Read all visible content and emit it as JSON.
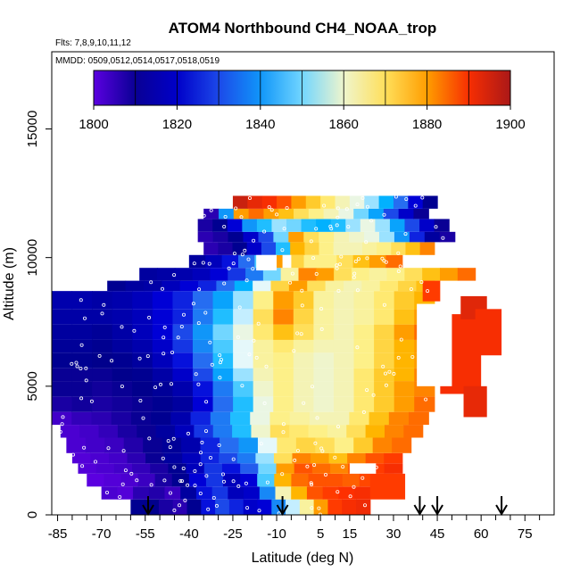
{
  "chart_data": {
    "type": "heatmap",
    "title": "ATOM4 Northbound CH4_NOAA_trop",
    "flights_note": "Flts: 7,8,9,10,11,12",
    "dates_note": "MMDD: 0509,0512,0514,0517,0518,0519",
    "xlabel": "Latitude (deg N)",
    "ylabel": "Altitude (m)",
    "xlim": [
      -87,
      85
    ],
    "ylim": [
      0,
      18000
    ],
    "x_ticks": [
      -85,
      -70,
      -55,
      -40,
      -25,
      -10,
      5,
      15,
      30,
      45,
      60,
      75
    ],
    "x_minor_ticks": [
      -80,
      -75,
      -65,
      -60,
      -50,
      -45,
      -35,
      -30,
      -20,
      -15,
      -5,
      0,
      10,
      20,
      25,
      35,
      40,
      50,
      55,
      65,
      70,
      80
    ],
    "y_ticks": [
      0,
      5000,
      10000,
      15000
    ],
    "colorbar": {
      "min": 1800,
      "max": 1900,
      "ticks": [
        1800,
        1820,
        1840,
        1860,
        1880,
        1900
      ],
      "segments": 10,
      "colors": [
        "#5b00e0",
        "#00008b",
        "#0000d8",
        "#2868f0",
        "#00b4ff",
        "#e4f8ff",
        "#fff080",
        "#ffb800",
        "#ff3000",
        "#aa1818"
      ]
    },
    "arrow_latitudes": [
      -54,
      -8,
      39,
      45,
      67
    ],
    "layers": [
      {
        "ymin": 0,
        "ymax": 600,
        "x0": -60,
        "x1": 22,
        "values": [
          1812,
          1811,
          1808,
          1806,
          1812,
          1824,
          1830,
          1826,
          1820,
          1822,
          1838,
          1854,
          1864,
          1880,
          1888,
          1890,
          1891
        ]
      },
      {
        "ymin": 600,
        "ymax": 1100,
        "x0": -70,
        "x1": 22,
        "values": [
          1802,
          1801,
          1806,
          1807,
          1804,
          1814,
          1824,
          1828,
          1818,
          1820,
          1838,
          1862,
          1878,
          1886,
          1888,
          1889,
          1890
        ]
      },
      {
        "ymin": 1100,
        "ymax": 1600,
        "x0": -75,
        "x1": 30,
        "values": [
          1800,
          1801,
          1802,
          1804,
          1808,
          1812,
          1822,
          1828,
          1818,
          1822,
          1848,
          1878,
          1884,
          1886,
          1886,
          1885,
          1887,
          1888
        ]
      },
      {
        "ymin": 1600,
        "ymax": 2000,
        "x0": -78,
        "x1": 33,
        "values": [
          1801,
          1802,
          1803,
          1805,
          1808,
          1812,
          1818,
          1828,
          1824,
          1832,
          1850,
          1880,
          1886,
          1884,
          1882,
          1886,
          1888,
          1890
        ]
      },
      {
        "ymin": 2000,
        "ymax": 2400,
        "x0": -80,
        "x1": 33,
        "values": [
          1801,
          1802,
          1803,
          1806,
          1810,
          1814,
          1818,
          1826,
          1830,
          1836,
          1852,
          1870,
          1882,
          1880,
          1876,
          1882,
          1886,
          1888
        ]
      },
      {
        "ymin": 2400,
        "ymax": 3000,
        "x0": -82,
        "x1": 36,
        "values": [
          1802,
          1803,
          1804,
          1807,
          1810,
          1813,
          1816,
          1826,
          1834,
          1840,
          1856,
          1868,
          1872,
          1870,
          1866,
          1874,
          1882,
          1884
        ]
      },
      {
        "ymin": 3000,
        "ymax": 3500,
        "x0": -84,
        "x1": 40,
        "values": [
          1802,
          1803,
          1805,
          1808,
          1810,
          1814,
          1818,
          1828,
          1836,
          1846,
          1860,
          1870,
          1868,
          1866,
          1864,
          1870,
          1878,
          1882,
          1884
        ]
      },
      {
        "ymin": 3500,
        "ymax": 4000,
        "x0": -87,
        "x1": 42,
        "values": [
          1803,
          1805,
          1806,
          1808,
          1810,
          1812,
          1816,
          1826,
          1836,
          1846,
          1858,
          1866,
          1864,
          1862,
          1862,
          1868,
          1876,
          1882,
          1884
        ]
      },
      {
        "ymin": 4000,
        "ymax": 4600,
        "x0": -87,
        "x1": 44,
        "values": [
          1808,
          1809,
          1808,
          1809,
          1810,
          1812,
          1814,
          1822,
          1834,
          1846,
          1858,
          1866,
          1862,
          1860,
          1862,
          1868,
          1874,
          1880,
          1884
        ]
      },
      {
        "ymin": 4600,
        "ymax": 5200,
        "x0": -87,
        "x1": 44,
        "values": [
          1810,
          1810,
          1809,
          1810,
          1811,
          1813,
          1816,
          1824,
          1836,
          1848,
          1860,
          1866,
          1862,
          1860,
          1862,
          1868,
          1874,
          1880,
          1882
        ]
      },
      {
        "ymin": 5200,
        "ymax": 5700,
        "x0": -87,
        "x1": 44,
        "values": [
          1810,
          1810,
          1810,
          1811,
          1812,
          1815,
          1820,
          1830,
          1842,
          1852,
          1862,
          1866,
          1862,
          1860,
          1862,
          1868,
          1874,
          1878,
          1882
        ]
      },
      {
        "ymin": 5700,
        "ymax": 6300,
        "x0": -87,
        "x1": 44,
        "values": [
          1812,
          1812,
          1811,
          1812,
          1814,
          1818,
          1824,
          1834,
          1846,
          1856,
          1864,
          1866,
          1862,
          1860,
          1862,
          1866,
          1872,
          1878,
          1880
        ]
      },
      {
        "ymin": 6300,
        "ymax": 6800,
        "x0": -87,
        "x1": 44,
        "values": [
          1813,
          1813,
          1812,
          1814,
          1816,
          1820,
          1828,
          1838,
          1848,
          1856,
          1864,
          1868,
          1864,
          1862,
          1862,
          1866,
          1872,
          1878,
          1880
        ]
      },
      {
        "ymin": 6800,
        "ymax": 7400,
        "x0": -87,
        "x1": 44,
        "values": [
          1814,
          1814,
          1813,
          1815,
          1818,
          1822,
          1830,
          1840,
          1850,
          1858,
          1868,
          1876,
          1870,
          1864,
          1862,
          1866,
          1872,
          1880,
          1884
        ]
      },
      {
        "ymin": 7400,
        "ymax": 8000,
        "x0": -87,
        "x1": 44,
        "values": [
          1815,
          1815,
          1815,
          1816,
          1818,
          1822,
          1826,
          1836,
          1846,
          1854,
          1870,
          1882,
          1872,
          1864,
          1862,
          1864,
          1868,
          1876,
          1880
        ]
      },
      {
        "ymin": 8000,
        "ymax": 8700,
        "x0": -87,
        "x1": 44,
        "values": [
          1816,
          1816,
          1815,
          1816,
          1818,
          1822,
          1826,
          1834,
          1842,
          1852,
          1866,
          1880,
          1874,
          1864,
          1862,
          1864,
          1868,
          1874,
          1878
        ]
      },
      {
        "ymin": 8700,
        "ymax": 9100,
        "x0": -68,
        "x1": 44,
        "values": [
          1812,
          1814,
          1815,
          1818,
          1822,
          1826,
          1834,
          1844,
          1856,
          1872,
          1880,
          1870,
          1864,
          1862,
          1864,
          1868,
          1872,
          1876
        ]
      },
      {
        "ymin": 9100,
        "ymax": 9600,
        "x0": -57,
        "x1": 58,
        "values": [
          1814,
          1815,
          1816,
          1818,
          1822,
          1828,
          1836,
          1850,
          1864,
          1882,
          1880,
          1870,
          1866,
          1864,
          1866,
          1870,
          1876,
          1880,
          1884
        ]
      },
      {
        "ymin": 9600,
        "ymax": 10100,
        "x0": -40,
        "x1": 33,
        "values": [
          1814,
          1818,
          1824,
          1834,
          1848,
          1880,
          1872,
          1866,
          1866,
          1870,
          1876,
          1880,
          1884
        ]
      },
      {
        "ymin": 10100,
        "ymax": 10600,
        "x0": -35,
        "x1": 44,
        "values": [
          1806,
          1808,
          1812,
          1820,
          1830,
          1846,
          1878,
          1872,
          1866,
          1862,
          1862,
          1864,
          1866,
          1870,
          1876,
          1882
        ]
      },
      {
        "ymin": 10600,
        "ymax": 11000,
        "x0": -37,
        "x1": 51,
        "values": [
          1806,
          1808,
          1812,
          1820,
          1830,
          1850,
          1880,
          1870,
          1866,
          1862,
          1860,
          1858,
          1852,
          1840,
          1826,
          1814,
          1808
        ]
      },
      {
        "ymin": 11000,
        "ymax": 11500,
        "x0": -37,
        "x1": 49,
        "values": [
          1808,
          1812,
          1822,
          1840,
          1846,
          1852,
          1850,
          1846,
          1844,
          1846,
          1852,
          1858,
          1852,
          1842,
          1830,
          1820,
          1810
        ]
      },
      {
        "ymin": 11500,
        "ymax": 11900,
        "x0": -35,
        "x1": 42,
        "values": [
          1806,
          1840,
          1880,
          1884,
          1880,
          1876,
          1870,
          1866,
          1862,
          1858,
          1850,
          1842,
          1830,
          1820,
          1810
        ]
      },
      {
        "ymin": 11900,
        "ymax": 12400,
        "x0": -25,
        "x1": 45,
        "values": [
          1896,
          1892,
          1890,
          1886,
          1880,
          1874,
          1868,
          1862,
          1858,
          1852,
          1844,
          1834,
          1822,
          1812
        ]
      }
    ],
    "patches": [
      {
        "lat": [
          46,
          60
        ],
        "alt": [
          4700,
          7800
        ],
        "value": 1890
      },
      {
        "lat": [
          53,
          62
        ],
        "alt": [
          7600,
          8500
        ],
        "value": 1893
      },
      {
        "lat": [
          58,
          67
        ],
        "alt": [
          6200,
          8000
        ],
        "value": 1890
      },
      {
        "lat": [
          54,
          62
        ],
        "alt": [
          3800,
          5000
        ],
        "value": 1892
      },
      {
        "lat": [
          40,
          46
        ],
        "alt": [
          8300,
          9100
        ],
        "value": 1888
      },
      {
        "lat": [
          22,
          34
        ],
        "alt": [
          600,
          1600
        ],
        "value": 1888
      }
    ],
    "white_holes": [
      {
        "lat": [
          38,
          50
        ],
        "alt": [
          5000,
          8200
        ]
      },
      {
        "lat": [
          15,
          24
        ],
        "alt": [
          1600,
          2000
        ]
      },
      {
        "lat": [
          -8,
          -5
        ],
        "alt": [
          9600,
          10100
        ]
      },
      {
        "lat": [
          -17,
          -10
        ],
        "alt": [
          9500,
          10100
        ]
      }
    ]
  }
}
